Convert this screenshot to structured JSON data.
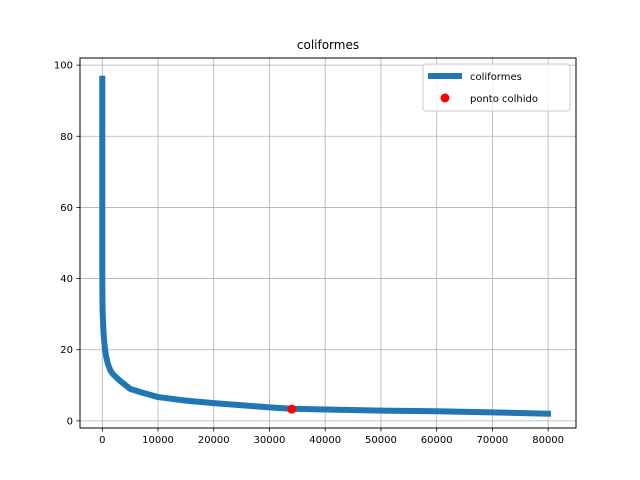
{
  "chart_data": {
    "type": "line",
    "title": "coliformes",
    "xlabel": "",
    "ylabel": "",
    "xlim": [
      -4000,
      85000
    ],
    "ylim": [
      -2,
      102
    ],
    "x_ticks": [
      0,
      10000,
      20000,
      30000,
      40000,
      50000,
      60000,
      70000,
      80000
    ],
    "x_tick_labels": [
      "0",
      "10000",
      "20000",
      "30000",
      "40000",
      "50000",
      "60000",
      "70000",
      "80000"
    ],
    "y_ticks": [
      0,
      20,
      40,
      60,
      80,
      100
    ],
    "y_tick_labels": [
      "0",
      "20",
      "40",
      "60",
      "80",
      "100"
    ],
    "grid": true,
    "legend_position": "top-right",
    "series": [
      {
        "name": "coliformes",
        "kind": "line",
        "color": "#1f77b4",
        "x": [
          0,
          0,
          0,
          0,
          5,
          10,
          30,
          60,
          100,
          150,
          200,
          300,
          500,
          700,
          1000,
          1500,
          2000,
          3000,
          5000,
          7000,
          10000,
          15000,
          20000,
          25000,
          30000,
          34000,
          40000,
          50000,
          60000,
          70000,
          80500
        ],
        "y": [
          97,
          70,
          50,
          44,
          42,
          38,
          34,
          31,
          29,
          27,
          25.5,
          23,
          20,
          18,
          16,
          14,
          13,
          11.5,
          9,
          8,
          6.7,
          5.7,
          5,
          4.4,
          3.8,
          3.4,
          3.2,
          2.9,
          2.7,
          2.4,
          2
        ]
      },
      {
        "name": "ponto colhido",
        "kind": "marker",
        "color": "#ff0000",
        "x": [
          34000
        ],
        "y": [
          3.3
        ]
      }
    ]
  }
}
